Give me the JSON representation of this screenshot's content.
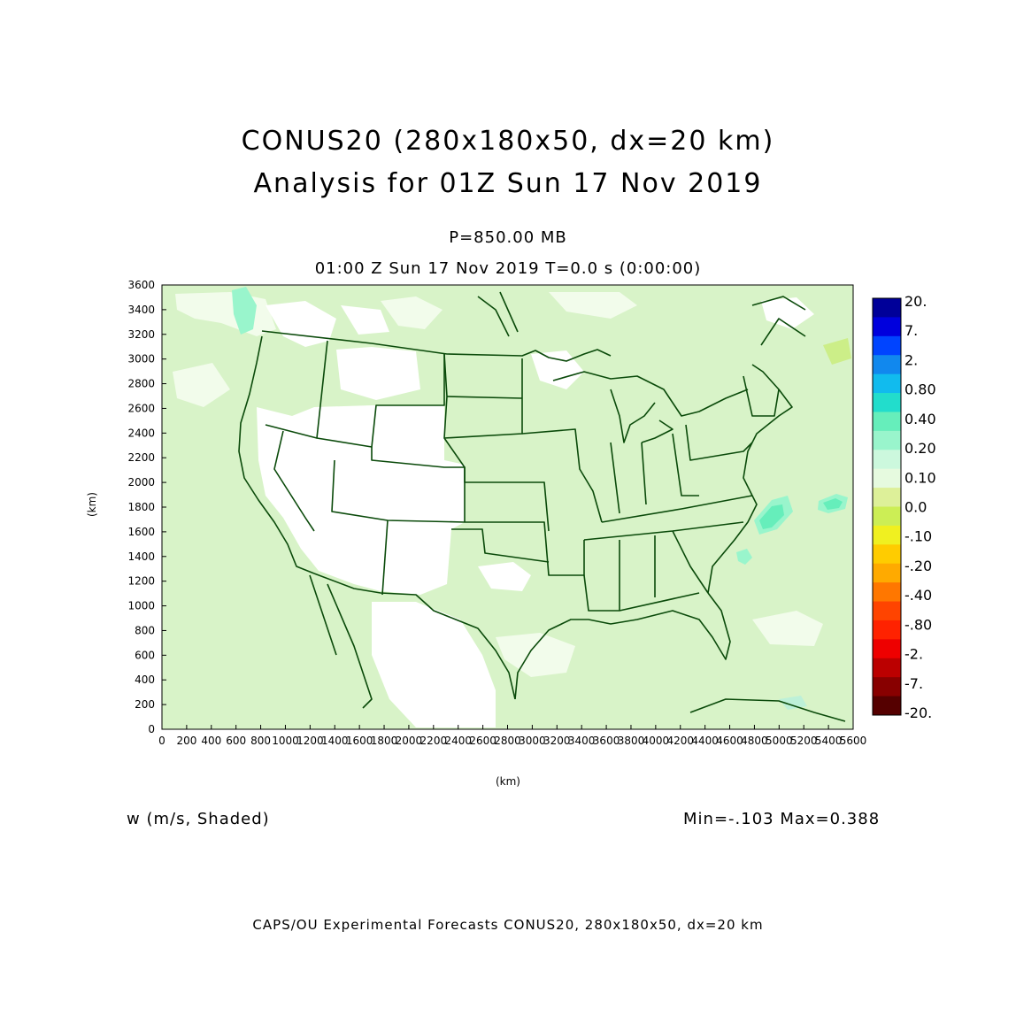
{
  "header": {
    "title_line1": "CONUS20 (280x180x50, dx=20 km)",
    "title_line2": "Analysis for 01Z Sun 17 Nov 2019",
    "level": "P=850.00 MB",
    "time": "01:00 Z Sun 17 Nov 2019    T=0.0 s (0:00:00)"
  },
  "field_label": "w (m/s, Shaded)",
  "min_max": "Min=-.103 Max=0.388",
  "footer": "CAPS/OU Experimental Forecasts  CONUS20, 280x180x50, dx=20 km",
  "axes": {
    "x_label": "(km)",
    "y_label": "(km)",
    "x_ticks": [
      "0",
      "200",
      "400",
      "600",
      "800",
      "1000",
      "1200",
      "1400",
      "1600",
      "1800",
      "2000",
      "2200",
      "2400",
      "2600",
      "2800",
      "3000",
      "3200",
      "3400",
      "3600",
      "3800",
      "4000",
      "4200",
      "4400",
      "4600",
      "4800",
      "5000",
      "5200",
      "5400",
      "5600"
    ],
    "y_ticks": [
      "0",
      "200",
      "400",
      "600",
      "800",
      "1000",
      "1200",
      "1400",
      "1600",
      "1800",
      "2000",
      "2200",
      "2400",
      "2600",
      "2800",
      "3000",
      "3200",
      "3400",
      "3600"
    ]
  },
  "colorbar": {
    "labels": [
      "20.",
      "7.",
      "2.",
      "0.80",
      "0.40",
      "0.20",
      "0.10",
      "0.0",
      "-.10",
      "-.20",
      "-.40",
      "-.80",
      "-2.",
      "-7.",
      "-20."
    ],
    "colors": [
      "#000099",
      "#0000dd",
      "#0044ff",
      "#1188ee",
      "#11bbee",
      "#22ddcc",
      "#66eebb",
      "#99f5cc",
      "#ccf8dd",
      "#e6fadf",
      "#ddf099",
      "#ccee55",
      "#f0f020",
      "#ffcc00",
      "#ffaa00",
      "#ff7700",
      "#ff4400",
      "#ff2200",
      "#ee0000",
      "#bb0000",
      "#880000",
      "#550000"
    ]
  },
  "colors": {
    "land": "#d8f3c8",
    "border": "#0a4a0a",
    "frame": "#000000"
  }
}
